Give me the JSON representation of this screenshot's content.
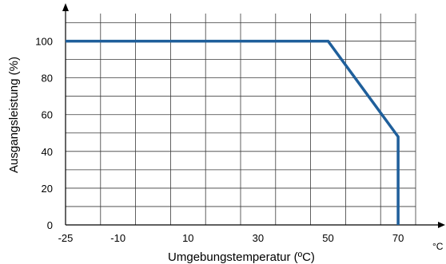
{
  "chart_data": {
    "type": "line",
    "xlabel": "Umgebungstemperatur (ºC)",
    "ylabel": "Ausgangsleistung (%)",
    "x_unit": "°C",
    "xlim": [
      -25,
      75
    ],
    "ylim": [
      0,
      115
    ],
    "x_ticks": [
      -25,
      -10,
      10,
      30,
      50,
      70
    ],
    "x_tick_labels": [
      "-25",
      "-10",
      "10",
      "30",
      "50",
      "70"
    ],
    "x_grid": [
      -25,
      -15,
      -5,
      5,
      15,
      25,
      35,
      45,
      55,
      65,
      75
    ],
    "y_ticks": [
      0,
      20,
      40,
      60,
      80,
      100
    ],
    "y_tick_labels": [
      "0",
      "20",
      "40",
      "60",
      "80",
      "100"
    ],
    "y_grid": [
      0,
      10,
      20,
      30,
      40,
      50,
      60,
      70,
      80,
      90,
      100,
      110
    ],
    "grid": true,
    "legend": "none",
    "series": [
      {
        "color": "#1f5f9b",
        "x": [
          -25,
          50,
          70,
          70
        ],
        "y": [
          100,
          100,
          48,
          0
        ]
      }
    ]
  }
}
